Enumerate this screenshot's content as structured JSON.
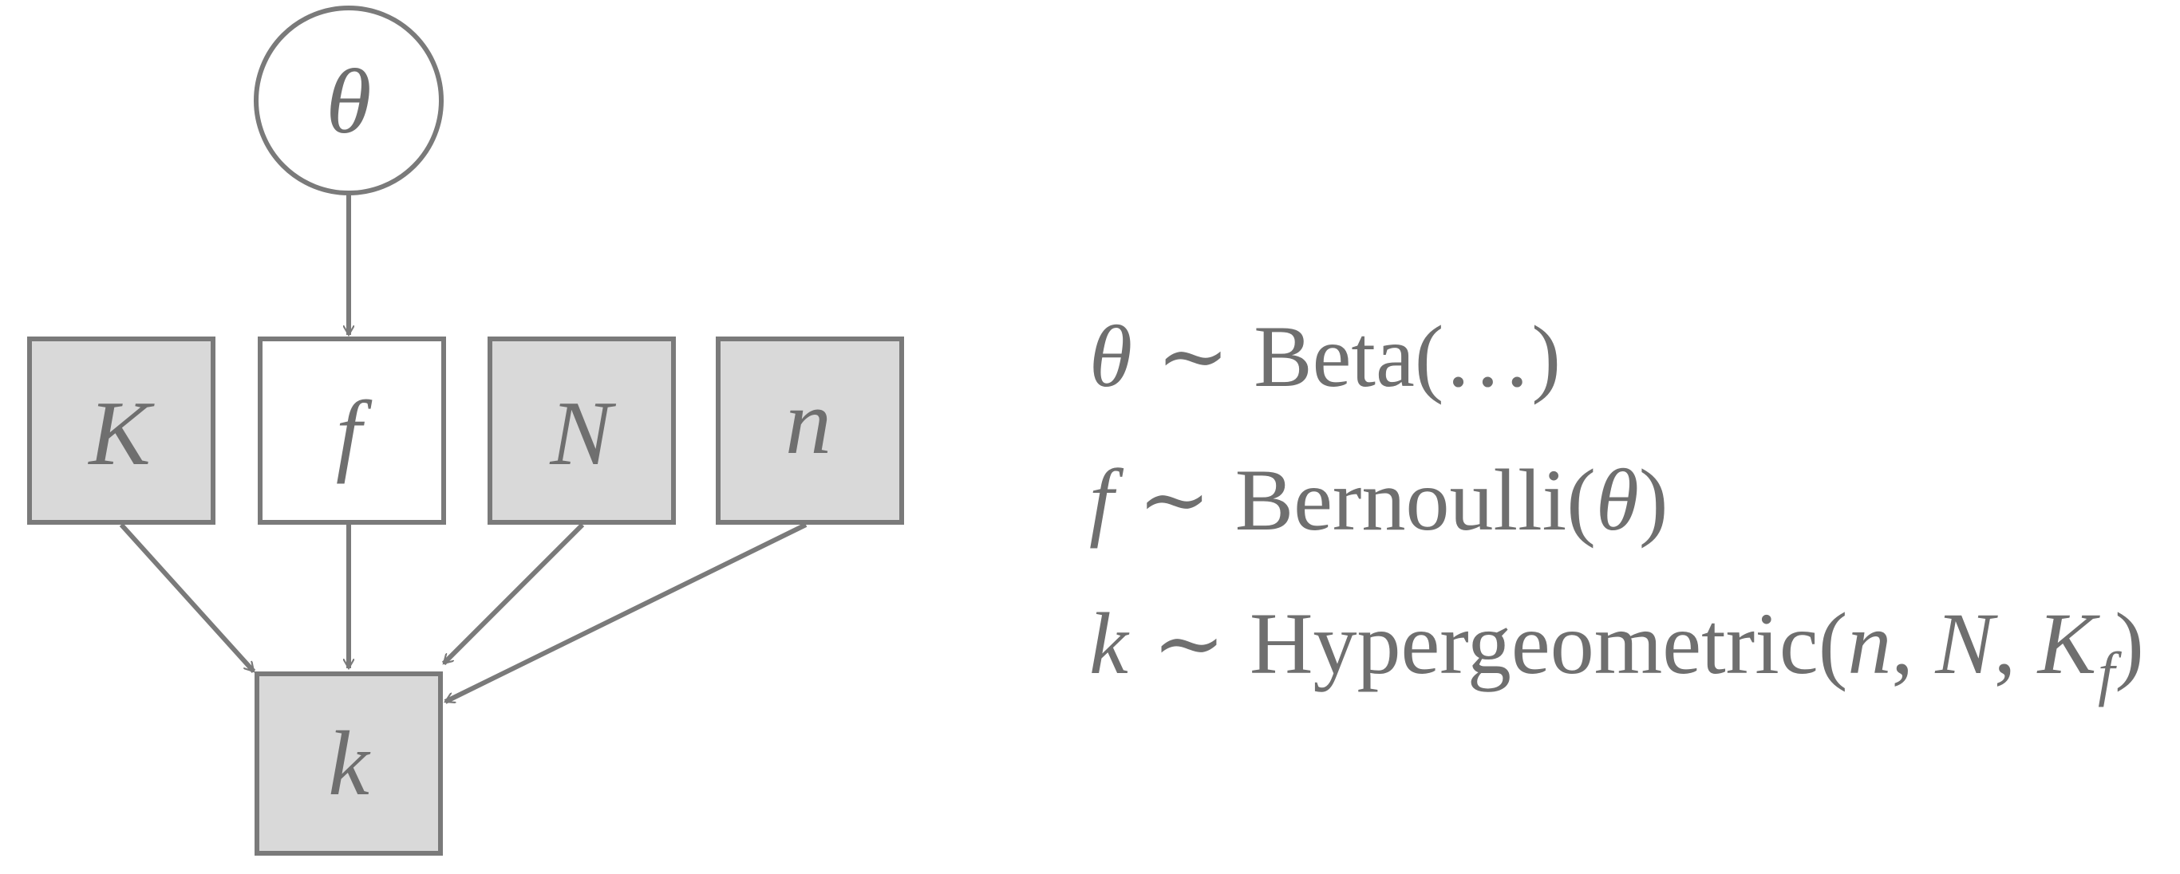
{
  "colors": {
    "stroke": "#7a7a7a",
    "observed_fill": "#d9d9d9",
    "latent_fill": "#ffffff",
    "text": "#6f6f6f"
  },
  "nodes": {
    "theta": {
      "label": "θ",
      "shape": "circle",
      "observed": false
    },
    "K": {
      "label": "K",
      "shape": "square",
      "observed": true
    },
    "f": {
      "label": "f",
      "shape": "square",
      "observed": false
    },
    "N": {
      "label": "N",
      "shape": "square",
      "observed": true
    },
    "n": {
      "label": "n",
      "shape": "square",
      "observed": true
    },
    "k": {
      "label": "k",
      "shape": "square",
      "observed": true
    }
  },
  "edges": [
    {
      "from": "theta",
      "to": "f"
    },
    {
      "from": "K",
      "to": "k"
    },
    {
      "from": "f",
      "to": "k"
    },
    {
      "from": "N",
      "to": "k"
    },
    {
      "from": "n",
      "to": "k"
    }
  ],
  "equations": {
    "line1": {
      "var": "θ",
      "tilde": "∼",
      "dist": "Beta(…)"
    },
    "line2": {
      "var": "f",
      "tilde": "∼",
      "dist": "Bernoulli(",
      "arg": "θ",
      "close": ")"
    },
    "line3": {
      "var": "k",
      "tilde": "∼",
      "dist": "Hypergeometric(",
      "arg1": "n",
      "sep1": ", ",
      "arg2": "N",
      "sep2": ", ",
      "arg3": "K",
      "arg3_sub": "f",
      "close": ")"
    }
  }
}
